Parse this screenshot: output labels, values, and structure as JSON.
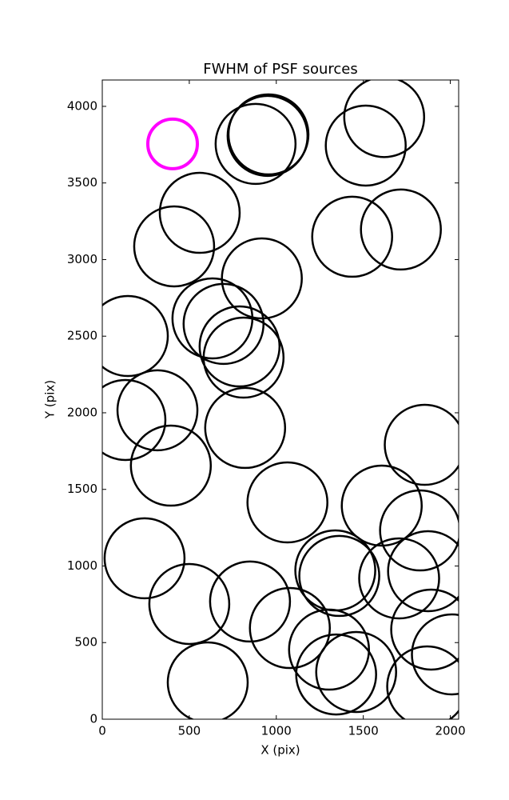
{
  "chart_data": {
    "type": "scatter",
    "title": "FWHM of PSF sources",
    "x_label": "X (pix)",
    "y_label": "Y (pix)",
    "xlim": [
      0,
      2048
    ],
    "ylim": [
      0,
      4172
    ],
    "xticks": [
      0,
      500,
      1000,
      1500,
      2000
    ],
    "yticks": [
      0,
      500,
      1000,
      1500,
      2000,
      2500,
      3000,
      3500,
      4000
    ],
    "series": [
      {
        "color": "#000000",
        "x": [
          1620,
          1514,
          881,
          950,
          955,
          560,
          413,
          1436,
          1716,
          917,
          633,
          697,
          789,
          147,
          812,
          133,
          317,
          821,
          1853,
          394,
          1064,
          1606,
          1826,
          243,
          1339,
          1362,
          1706,
          1872,
          500,
          849,
          1078,
          1303,
          1890,
          2009,
          606,
          1459,
          1344,
          1867
        ],
        "values": [
          3930,
          3744,
          3755,
          3807,
          3817,
          3305,
          3086,
          3149,
          3196,
          2877,
          2616,
          2580,
          2433,
          2501,
          2360,
          1953,
          2016,
          1901,
          1791,
          1655,
          1415,
          1394,
          1232,
          1050,
          971,
          935,
          919,
          966,
          752,
          768,
          595,
          454,
          585,
          423,
          240,
          308,
          292,
          214
        ]
      },
      {
        "color": "#ff00ff",
        "x": [
          404
        ],
        "values": [
          3755
        ]
      }
    ]
  }
}
